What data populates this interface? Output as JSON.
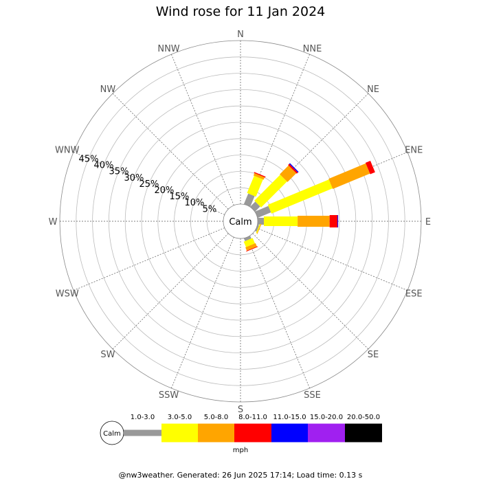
{
  "chart_data": {
    "type": "wind-rose",
    "title": "Wind rose for 11 Jan 2024",
    "directions": [
      "N",
      "NNE",
      "NE",
      "ENE",
      "E",
      "ESE",
      "SE",
      "SSE",
      "S",
      "SSW",
      "SW",
      "WSW",
      "W",
      "WNW",
      "NW",
      "NNW"
    ],
    "radial_ticks": [
      "5%",
      "10%",
      "15%",
      "20%",
      "25%",
      "30%",
      "35%",
      "40%",
      "45%"
    ],
    "radial_max_percent": 50,
    "center_label": "Calm",
    "units": "mph",
    "speed_bins": [
      {
        "label": "1.0-3.0",
        "color": "#999999"
      },
      {
        "label": "3.0-5.0",
        "color": "#ffff00"
      },
      {
        "label": "5.0-8.0",
        "color": "#ffa500"
      },
      {
        "label": "8.0-11.0",
        "color": "#ff0000"
      },
      {
        "label": "11.0-15.0",
        "color": "#0000ff"
      },
      {
        "label": "15.0-20.0",
        "color": "#a020f0"
      },
      {
        "label": "20.0-50.0",
        "color": "#000000"
      }
    ],
    "frequencies_percent": {
      "N": [
        0,
        0,
        0,
        0,
        0,
        0,
        0
      ],
      "NNE": [
        3.5,
        5.7,
        0.8,
        0.3,
        0,
        0,
        0
      ],
      "NE": [
        2.2,
        11.2,
        3.8,
        0.5,
        0.3,
        0,
        0
      ],
      "ENE": [
        4.4,
        20.2,
        12.3,
        1.6,
        0,
        0,
        0
      ],
      "E": [
        1.9,
        10.3,
        9.8,
        2.4,
        0.2,
        0,
        0
      ],
      "ESE": [
        0.5,
        0.3,
        0.2,
        0,
        0,
        0,
        0
      ],
      "SE": [
        0,
        0,
        0,
        0,
        0,
        0,
        0
      ],
      "SSE": [
        0.9,
        1.8,
        1.1,
        0.2,
        0,
        0,
        0
      ],
      "S": [
        0,
        0,
        0,
        0,
        0,
        0,
        0
      ],
      "SSW": [
        0,
        0,
        0,
        0,
        0,
        0,
        0
      ],
      "SW": [
        0,
        0,
        0,
        0,
        0,
        0,
        0
      ],
      "WSW": [
        0,
        0,
        0,
        0,
        0,
        0,
        0
      ],
      "W": [
        0,
        0,
        0,
        0,
        0,
        0,
        0
      ],
      "WNW": [
        0,
        0,
        0,
        0,
        0,
        0,
        0
      ],
      "NW": [
        0,
        0,
        0,
        0,
        0,
        0,
        0
      ],
      "NNW": [
        0,
        0,
        0,
        0,
        0,
        0,
        0
      ]
    }
  },
  "footer": "@nw3weather. Generated: 26 Jun 2025 17:14; Load time: 0.13 s"
}
